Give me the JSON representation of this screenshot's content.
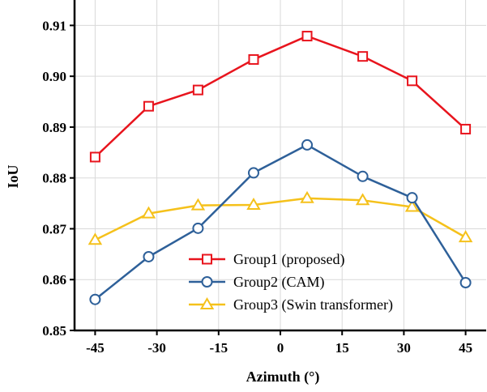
{
  "chart_data": {
    "type": "line",
    "xlabel": "Azimuth (°)",
    "ylabel": "IoU",
    "xlim": [
      -50,
      50
    ],
    "ylim": [
      0.85,
      0.915
    ],
    "xticks": [
      -45,
      -30,
      -15,
      0,
      15,
      30,
      45
    ],
    "yticks": [
      0.85,
      0.86,
      0.87,
      0.88,
      0.89,
      0.9,
      0.91
    ],
    "xtick_labels": [
      "-45",
      "-30",
      "-15",
      "0",
      "15",
      "30",
      "45"
    ],
    "ytick_labels": [
      "0.85",
      "0.86",
      "0.87",
      "0.88",
      "0.89",
      "0.90",
      "0.91"
    ],
    "grid": true,
    "legend_position": "lower-center",
    "x": [
      -45,
      -32,
      -20,
      -6.5,
      6.5,
      20,
      32,
      45
    ],
    "series": [
      {
        "name": "Group1 (proposed)",
        "color": "#e8141d",
        "marker": "square",
        "values": [
          0.8841,
          0.8941,
          0.8973,
          0.9033,
          0.9079,
          0.9039,
          0.8991,
          0.8896
        ]
      },
      {
        "name": "Group2 (CAM)",
        "color": "#2e6099",
        "marker": "circle",
        "values": [
          0.8561,
          0.8645,
          0.8701,
          0.881,
          0.8865,
          0.8803,
          0.8761,
          0.8594
        ]
      },
      {
        "name": "Group3 (Swin transformer)",
        "color": "#f5c11b",
        "marker": "triangle",
        "values": [
          0.8678,
          0.873,
          0.8746,
          0.8747,
          0.876,
          0.8756,
          0.8743,
          0.8683
        ]
      }
    ]
  }
}
